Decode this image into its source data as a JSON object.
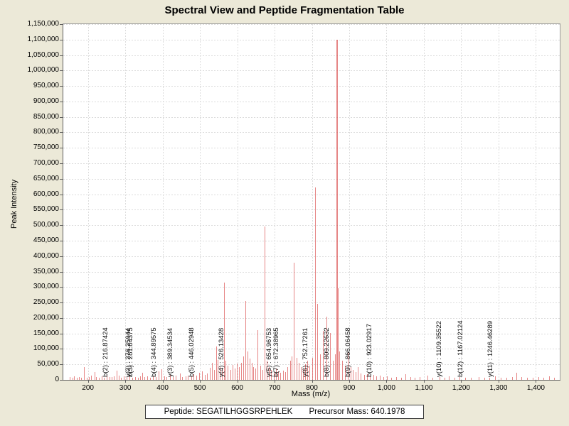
{
  "title": "Spectral View and Peptide Fragmentation Table",
  "footer": {
    "peptide": "Peptide: SEGATILHGGSRPEHLEK",
    "precursor": "Precursor Mass: 640.1978"
  },
  "chart_data": {
    "type": "bar",
    "subtype": "mass-spectrum",
    "title": "Spectral View and Peptide Fragmentation Table",
    "xlabel": "Mass (m/z)",
    "ylabel": "Peak Intensity",
    "xlim": [
      134,
      1464
    ],
    "ylim": [
      0,
      1150000
    ],
    "grid": "dashed",
    "legend": "none",
    "peak_color": "rgba(214,60,60,0.62)",
    "background_color": "#ece9d8",
    "plot_background": "#ffffff",
    "x_ticks": [
      200,
      300,
      400,
      500,
      600,
      700,
      800,
      900,
      1000,
      1100,
      1200,
      1300,
      1400
    ],
    "y_ticks": [
      0,
      50000,
      100000,
      150000,
      200000,
      250000,
      300000,
      350000,
      400000,
      450000,
      500000,
      550000,
      600000,
      650000,
      700000,
      750000,
      800000,
      850000,
      900000,
      950000,
      1000000,
      1050000,
      1100000,
      1150000
    ],
    "annotations": [
      {
        "ion": "b(2)",
        "mz": 216.87424,
        "label": "b(2) : 216.87424"
      },
      {
        "ion": "y(2)",
        "mz": 276.25944,
        "label": "y(2) : 276.25944"
      },
      {
        "ion": "b(3)",
        "mz": 281.84375,
        "label": "b(3) : 281.84375"
      },
      {
        "ion": "b(4)",
        "mz": 344.89575,
        "label": "b(4) : 344.89575"
      },
      {
        "ion": "y(3)",
        "mz": 389.34534,
        "label": "y(3) : 389.34534"
      },
      {
        "ion": "b(5)",
        "mz": 446.02948,
        "label": "b(5) : 446.02948"
      },
      {
        "ion": "y(4)",
        "mz": 526.13428,
        "label": "y(4) : 526.13428"
      },
      {
        "ion": "y(5)",
        "mz": 654.96753,
        "label": "y(5) : 654.96753"
      },
      {
        "ion": "b(7)",
        "mz": 672.38965,
        "label": "b(7) : 672.38965"
      },
      {
        "ion": "y(6)",
        "mz": 752.17261,
        "label": "y(6) : 752.17261"
      },
      {
        "ion": "b(8)",
        "mz": 809.22632,
        "label": "b(8) : 809.22632"
      },
      {
        "ion": "b(9)",
        "mz": 866.06458,
        "label": "b(9) : 866.06458"
      },
      {
        "ion": "b(10)",
        "mz": 923.02917,
        "label": "b(10) : 923.02917"
      },
      {
        "ion": "y(10)",
        "mz": 1109.35522,
        "label": "y(10) : 1109.35522"
      },
      {
        "ion": "b(12)",
        "mz": 1167.02124,
        "label": "b(12) : 1167.02124"
      },
      {
        "ion": "y(11)",
        "mz": 1246.46289,
        "label": "y(11) : 1246.46289"
      }
    ],
    "peaks": [
      [
        152,
        9000
      ],
      [
        158,
        6000
      ],
      [
        163,
        12000
      ],
      [
        170,
        7000
      ],
      [
        176,
        10000
      ],
      [
        182,
        8000
      ],
      [
        190,
        42000
      ],
      [
        196,
        7000
      ],
      [
        203,
        10000
      ],
      [
        209,
        13000
      ],
      [
        216.87424,
        26000
      ],
      [
        222,
        9000
      ],
      [
        229,
        6000
      ],
      [
        236,
        11000
      ],
      [
        243,
        8000
      ],
      [
        251,
        14000
      ],
      [
        258,
        9000
      ],
      [
        264,
        10000
      ],
      [
        270,
        12000
      ],
      [
        276.25944,
        30000
      ],
      [
        281.84375,
        15000
      ],
      [
        289,
        8000
      ],
      [
        296,
        12000
      ],
      [
        303,
        9000
      ],
      [
        311,
        15000
      ],
      [
        319,
        8000
      ],
      [
        327,
        10000
      ],
      [
        334,
        8000
      ],
      [
        340,
        12000
      ],
      [
        344.89575,
        22000
      ],
      [
        351,
        9000
      ],
      [
        359,
        11000
      ],
      [
        367,
        8000
      ],
      [
        374,
        13000
      ],
      [
        381,
        10000
      ],
      [
        389.34534,
        28000
      ],
      [
        396,
        34000
      ],
      [
        404,
        12000
      ],
      [
        411,
        9000
      ],
      [
        419,
        16000
      ],
      [
        427,
        10000
      ],
      [
        435,
        13000
      ],
      [
        446.02948,
        20000
      ],
      [
        453,
        9000
      ],
      [
        461,
        12000
      ],
      [
        468,
        15000
      ],
      [
        476,
        11000
      ],
      [
        483,
        18000
      ],
      [
        491,
        13000
      ],
      [
        498,
        22000
      ],
      [
        506,
        28000
      ],
      [
        513,
        16000
      ],
      [
        519,
        21000
      ],
      [
        526.13428,
        38000
      ],
      [
        532,
        55000
      ],
      [
        538,
        32000
      ],
      [
        543,
        108000
      ],
      [
        548,
        65000
      ],
      [
        553,
        42000
      ],
      [
        558,
        36000
      ],
      [
        564,
        315000
      ],
      [
        569,
        62000
      ],
      [
        575,
        46000
      ],
      [
        581,
        32000
      ],
      [
        587,
        48000
      ],
      [
        593,
        36000
      ],
      [
        599,
        52000
      ],
      [
        605,
        42000
      ],
      [
        611,
        56000
      ],
      [
        616,
        77000
      ],
      [
        622,
        255000
      ],
      [
        627,
        92000
      ],
      [
        633,
        70000
      ],
      [
        638,
        56000
      ],
      [
        643,
        42000
      ],
      [
        649,
        36000
      ],
      [
        654.96753,
        160000
      ],
      [
        661,
        46000
      ],
      [
        667,
        32000
      ],
      [
        672.38965,
        497000
      ],
      [
        678,
        62000
      ],
      [
        684,
        42000
      ],
      [
        691,
        32000
      ],
      [
        697,
        26000
      ],
      [
        703,
        36000
      ],
      [
        709,
        28000
      ],
      [
        716,
        23000
      ],
      [
        722,
        31000
      ],
      [
        728,
        26000
      ],
      [
        735,
        41000
      ],
      [
        741,
        61000
      ],
      [
        746,
        76000
      ],
      [
        752.17261,
        380000
      ],
      [
        758,
        72000
      ],
      [
        764,
        56000
      ],
      [
        770,
        42000
      ],
      [
        776,
        36000
      ],
      [
        782,
        51000
      ],
      [
        788,
        61000
      ],
      [
        794,
        46000
      ],
      [
        801,
        72000
      ],
      [
        809.22632,
        622000
      ],
      [
        815,
        245000
      ],
      [
        822,
        82000
      ],
      [
        829,
        158000
      ],
      [
        839,
        204000
      ],
      [
        848,
        151000
      ],
      [
        856,
        62000
      ],
      [
        861,
        82000
      ],
      [
        866.06458,
        1100000
      ],
      [
        869,
        296000
      ],
      [
        874,
        92000
      ],
      [
        881,
        62000
      ],
      [
        888,
        46000
      ],
      [
        896,
        89000
      ],
      [
        903,
        42000
      ],
      [
        910,
        32000
      ],
      [
        917,
        26000
      ],
      [
        923.02917,
        41000
      ],
      [
        931,
        21000
      ],
      [
        939,
        16000
      ],
      [
        947,
        19000
      ],
      [
        956,
        13000
      ],
      [
        964,
        16000
      ],
      [
        973,
        11000
      ],
      [
        982,
        13000
      ],
      [
        991,
        9000
      ],
      [
        1001,
        11000
      ],
      [
        1013,
        8000
      ],
      [
        1026,
        10000
      ],
      [
        1039,
        7000
      ],
      [
        1051,
        19000
      ],
      [
        1063,
        9000
      ],
      [
        1076,
        7000
      ],
      [
        1089,
        10000
      ],
      [
        1109.35522,
        13000
      ],
      [
        1123,
        7000
      ],
      [
        1141,
        9000
      ],
      [
        1156,
        6000
      ],
      [
        1167.02124,
        11000
      ],
      [
        1181,
        7000
      ],
      [
        1196,
        9000
      ],
      [
        1211,
        6000
      ],
      [
        1226,
        8000
      ],
      [
        1246.46289,
        10000
      ],
      [
        1261,
        6000
      ],
      [
        1276,
        7000
      ],
      [
        1291,
        11000
      ],
      [
        1306,
        8000
      ],
      [
        1321,
        6000
      ],
      [
        1336,
        9000
      ],
      [
        1348,
        23000
      ],
      [
        1361,
        10000
      ],
      [
        1376,
        7000
      ],
      [
        1391,
        6000
      ],
      [
        1406,
        9000
      ],
      [
        1421,
        7000
      ],
      [
        1436,
        11000
      ],
      [
        1449,
        8000
      ]
    ]
  }
}
